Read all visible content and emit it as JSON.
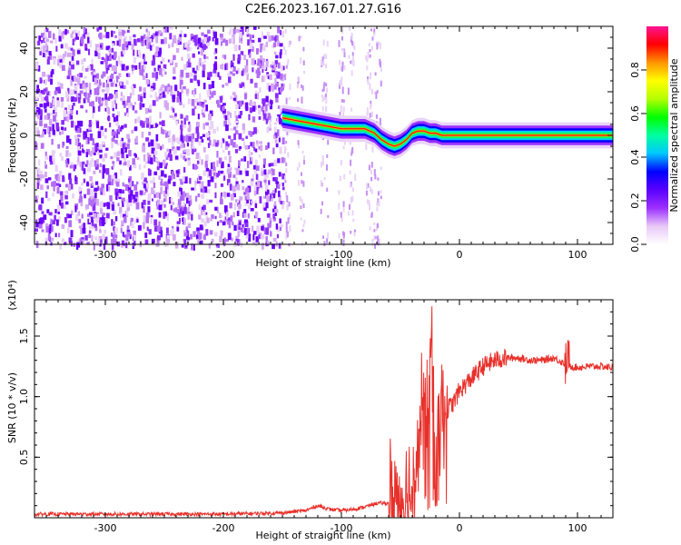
{
  "title": "C2E6.2023.167.01.27.G16",
  "chart_data": [
    {
      "type": "heatmap",
      "xlabel": "Height of straight line (km)",
      "ylabel": "Frequency (Hz)",
      "xlim": [
        -360,
        130
      ],
      "ylim": [
        -50,
        50
      ],
      "xticks": [
        -300,
        -200,
        -100,
        0,
        100
      ],
      "yticks": [
        -40,
        -20,
        0,
        20,
        40
      ],
      "colorbar": {
        "label": "Normalized spectral amplitude",
        "range": [
          0,
          1
        ],
        "ticks": [
          0.0,
          0.2,
          0.4,
          0.6,
          0.8
        ],
        "tick_labels": [
          "0.0",
          "0.2",
          "0.4",
          "0.6",
          "0.8"
        ],
        "colors": [
          "#ffffff",
          "#e9c9f6",
          "#9b30ff",
          "#5a00ff",
          "#0000ff",
          "#00c8ff",
          "#00ffa0",
          "#00ff00",
          "#b4ff00",
          "#ffff00",
          "#ff9600",
          "#ff0000",
          "#ff1493"
        ]
      },
      "track": {
        "x": [
          -150,
          -140,
          -130,
          -120,
          -110,
          -100,
          -90,
          -80,
          -72,
          -66,
          -60,
          -55,
          -50,
          -45,
          -40,
          -35,
          -30,
          -25,
          -20,
          -15,
          -10,
          0,
          20,
          50,
          90,
          130
        ],
        "y": [
          8,
          7,
          6,
          5,
          4,
          3,
          3,
          3,
          1,
          -2,
          -4,
          -5,
          -4,
          -2,
          1,
          2,
          2,
          1,
          1,
          0,
          0,
          0,
          0,
          0,
          0,
          0
        ]
      }
    },
    {
      "type": "line",
      "xlabel": "Height of straight line (km)",
      "ylabel": "SNR (10 * v/v)",
      "y_multiplier": "(x10⁴)",
      "xlim": [
        -360,
        130
      ],
      "ylim": [
        0,
        1.8
      ],
      "xticks": [
        -300,
        -200,
        -100,
        0,
        100
      ],
      "yticks": [
        0.5,
        1.0,
        1.5
      ],
      "ytick_labels": [
        "0.5",
        "1.0",
        "1.5"
      ],
      "color": "#e8302a",
      "series": [
        {
          "x": [
            -360,
            -300,
            -250,
            -200,
            -150,
            -130,
            -120,
            -110,
            -100,
            -90,
            -80,
            -70,
            -60,
            -50,
            -45,
            -40,
            -35,
            -30,
            -25,
            -22,
            -20,
            -15,
            -10,
            -5,
            0,
            10,
            20,
            30,
            40,
            50,
            60,
            70,
            80,
            88,
            90,
            95,
            100,
            110,
            120,
            130
          ],
          "y": [
            0.03,
            0.03,
            0.03,
            0.03,
            0.04,
            0.06,
            0.1,
            0.07,
            0.06,
            0.07,
            0.09,
            0.12,
            0.12,
            0.2,
            0.15,
            0.25,
            0.6,
            0.9,
            1.2,
            1.4,
            0.6,
            0.95,
            0.9,
            0.95,
            1.05,
            1.15,
            1.25,
            1.3,
            1.32,
            1.32,
            1.3,
            1.3,
            1.32,
            1.28,
            1.25,
            1.25,
            1.24,
            1.25,
            1.25,
            1.24
          ]
        }
      ]
    }
  ]
}
